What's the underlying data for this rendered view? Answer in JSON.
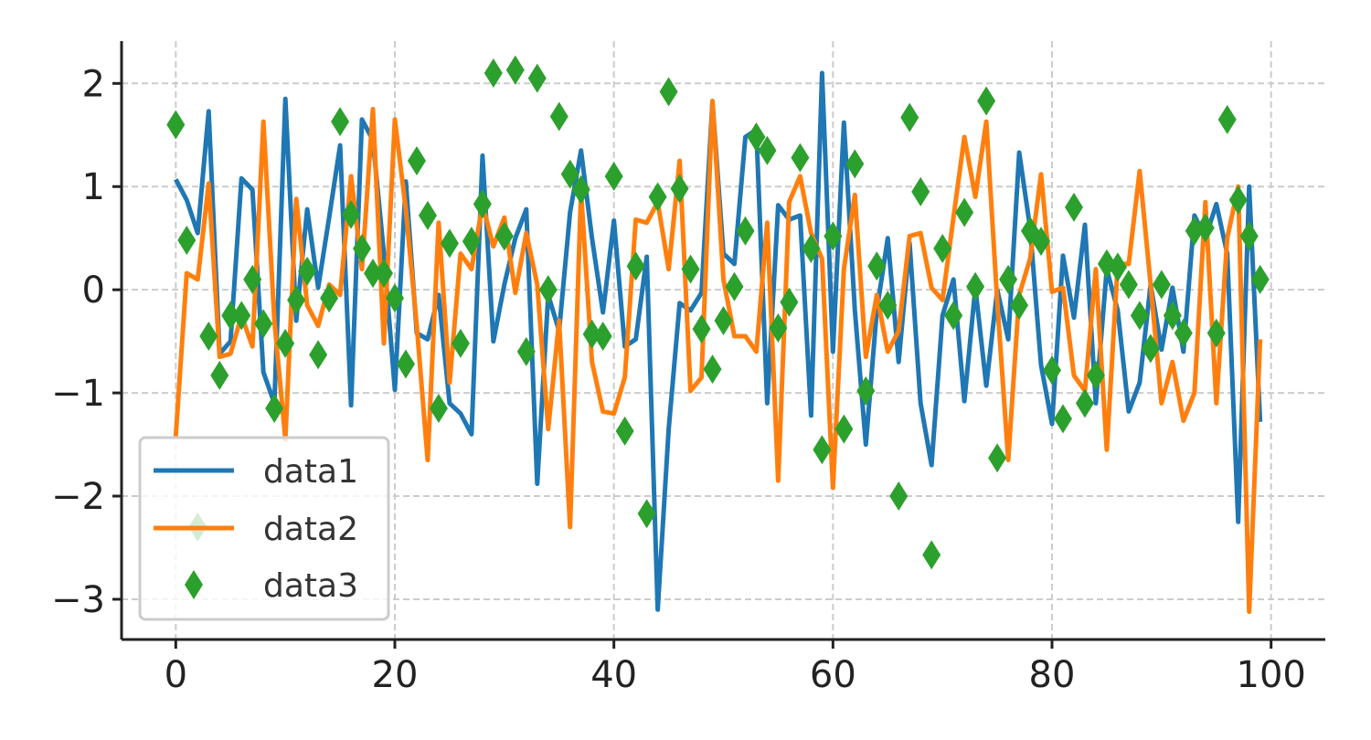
{
  "chart_data": {
    "type": "line",
    "title": "",
    "xlabel": "",
    "ylabel": "",
    "xlim": [
      -4.95,
      104.95
    ],
    "ylim": [
      -3.39,
      2.41
    ],
    "xticks": [
      0,
      20,
      40,
      60,
      80,
      100
    ],
    "xtick_labels": [
      "0",
      "20",
      "40",
      "60",
      "80",
      "100"
    ],
    "yticks": [
      2,
      1,
      0,
      -1,
      -2,
      -3
    ],
    "ytick_labels": [
      "2",
      "1",
      "0",
      "−1",
      "−2",
      "−3"
    ],
    "grid": true,
    "legend": {
      "placement": "lower-left",
      "entries": [
        "data1",
        "data2",
        "data3"
      ]
    },
    "series": [
      {
        "name": "data1",
        "kind": "line",
        "color": "#1f77b4",
        "values": [
          1.07,
          0.87,
          0.55,
          1.73,
          -0.62,
          -0.5,
          1.08,
          0.97,
          -0.8,
          -1.1,
          1.85,
          -0.3,
          0.78,
          0.02,
          0.7,
          1.4,
          -1.12,
          1.65,
          1.45,
          0.35,
          -0.97,
          1.05,
          -0.42,
          -0.48,
          -0.05,
          -1.1,
          -1.2,
          -1.4,
          1.3,
          -0.5,
          0.05,
          0.5,
          0.78,
          -1.88,
          -0.05,
          -0.4,
          0.75,
          1.35,
          0.5,
          -0.22,
          0.67,
          -0.55,
          -0.48,
          0.32,
          -3.1,
          -1.35,
          -0.13,
          -0.2,
          -0.03,
          1.82,
          0.35,
          0.25,
          1.48,
          1.55,
          -1.1,
          0.82,
          0.68,
          0.72,
          -1.22,
          2.1,
          -0.6,
          1.62,
          -0.2,
          -1.5,
          -0.2,
          0.5,
          -0.7,
          0.45,
          -1.1,
          -1.7,
          -0.25,
          0.1,
          -1.08,
          0.02,
          -0.93,
          0.0,
          -0.48,
          1.33,
          0.6,
          -0.73,
          -1.3,
          0.33,
          -0.27,
          0.63,
          -1.1,
          0.2,
          -0.2,
          -1.18,
          -0.9,
          0.05,
          -0.58,
          0.02,
          -0.6,
          0.72,
          0.5,
          0.83,
          0.35,
          -2.25,
          1.0,
          -1.28
        ]
      },
      {
        "name": "data2",
        "kind": "line",
        "color": "#ff7f0e",
        "values": [
          -1.42,
          0.16,
          0.1,
          1.03,
          -0.65,
          -0.62,
          -0.25,
          -0.55,
          1.63,
          -0.3,
          -1.45,
          0.88,
          -0.15,
          -0.35,
          0.05,
          -0.05,
          1.1,
          0.2,
          1.75,
          -0.52,
          1.65,
          0.78,
          -0.35,
          -1.65,
          0.65,
          -0.9,
          0.35,
          0.2,
          0.83,
          0.42,
          0.7,
          -0.03,
          0.55,
          0.05,
          -1.35,
          -0.3,
          -2.3,
          0.95,
          -0.7,
          -1.18,
          -1.2,
          -0.85,
          0.68,
          0.65,
          0.85,
          0.2,
          1.25,
          -0.98,
          -0.85,
          1.83,
          0.1,
          -0.45,
          -0.45,
          -0.6,
          0.65,
          -1.85,
          0.85,
          1.1,
          0.55,
          0.3,
          -1.92,
          0.2,
          0.92,
          -0.65,
          -0.05,
          -0.6,
          -0.4,
          0.52,
          0.55,
          0.02,
          -0.1,
          0.7,
          1.48,
          0.9,
          1.63,
          -0.12,
          -1.65,
          -0.05,
          0.3,
          1.12,
          -0.02,
          0.02,
          -0.83,
          -0.98,
          0.2,
          -1.55,
          0.25,
          0.25,
          1.15,
          0.05,
          -1.1,
          -0.7,
          -1.27,
          -1.0,
          0.85,
          -1.1,
          0.5,
          1.0,
          -3.12,
          -0.48
        ]
      },
      {
        "name": "data3",
        "kind": "scatter",
        "marker": "diamond",
        "color": "#2ca02c",
        "values": [
          1.6,
          0.48,
          -2.3,
          -0.45,
          -0.83,
          -0.25,
          -0.25,
          0.1,
          -0.33,
          -1.15,
          -0.52,
          -0.1,
          0.18,
          -0.63,
          -0.08,
          1.63,
          0.73,
          0.4,
          0.16,
          0.16,
          -0.08,
          -0.72,
          1.25,
          0.72,
          -1.15,
          0.45,
          -0.52,
          0.47,
          0.83,
          2.1,
          0.52,
          2.13,
          -0.6,
          2.05,
          0.0,
          1.68,
          1.12,
          0.97,
          -0.43,
          -0.45,
          1.1,
          -1.37,
          0.23,
          -2.17,
          0.9,
          1.92,
          0.98,
          0.2,
          -0.38,
          -0.77,
          -0.3,
          0.03,
          0.57,
          1.48,
          1.35,
          -0.37,
          -0.12,
          1.28,
          0.4,
          -1.55,
          0.52,
          -1.35,
          1.22,
          -0.98,
          0.23,
          -0.15,
          -2.0,
          1.67,
          0.95,
          -2.57,
          0.4,
          -0.25,
          0.75,
          0.03,
          1.83,
          -1.63,
          0.1,
          -0.15,
          0.57,
          0.47,
          -0.78,
          -1.25,
          0.8,
          -1.1,
          -0.83,
          0.25,
          0.22,
          0.05,
          -0.25,
          -0.57,
          0.05,
          -0.25,
          -0.42,
          0.57,
          0.6,
          -0.42,
          1.65,
          0.87,
          0.52,
          0.1
        ]
      }
    ]
  }
}
